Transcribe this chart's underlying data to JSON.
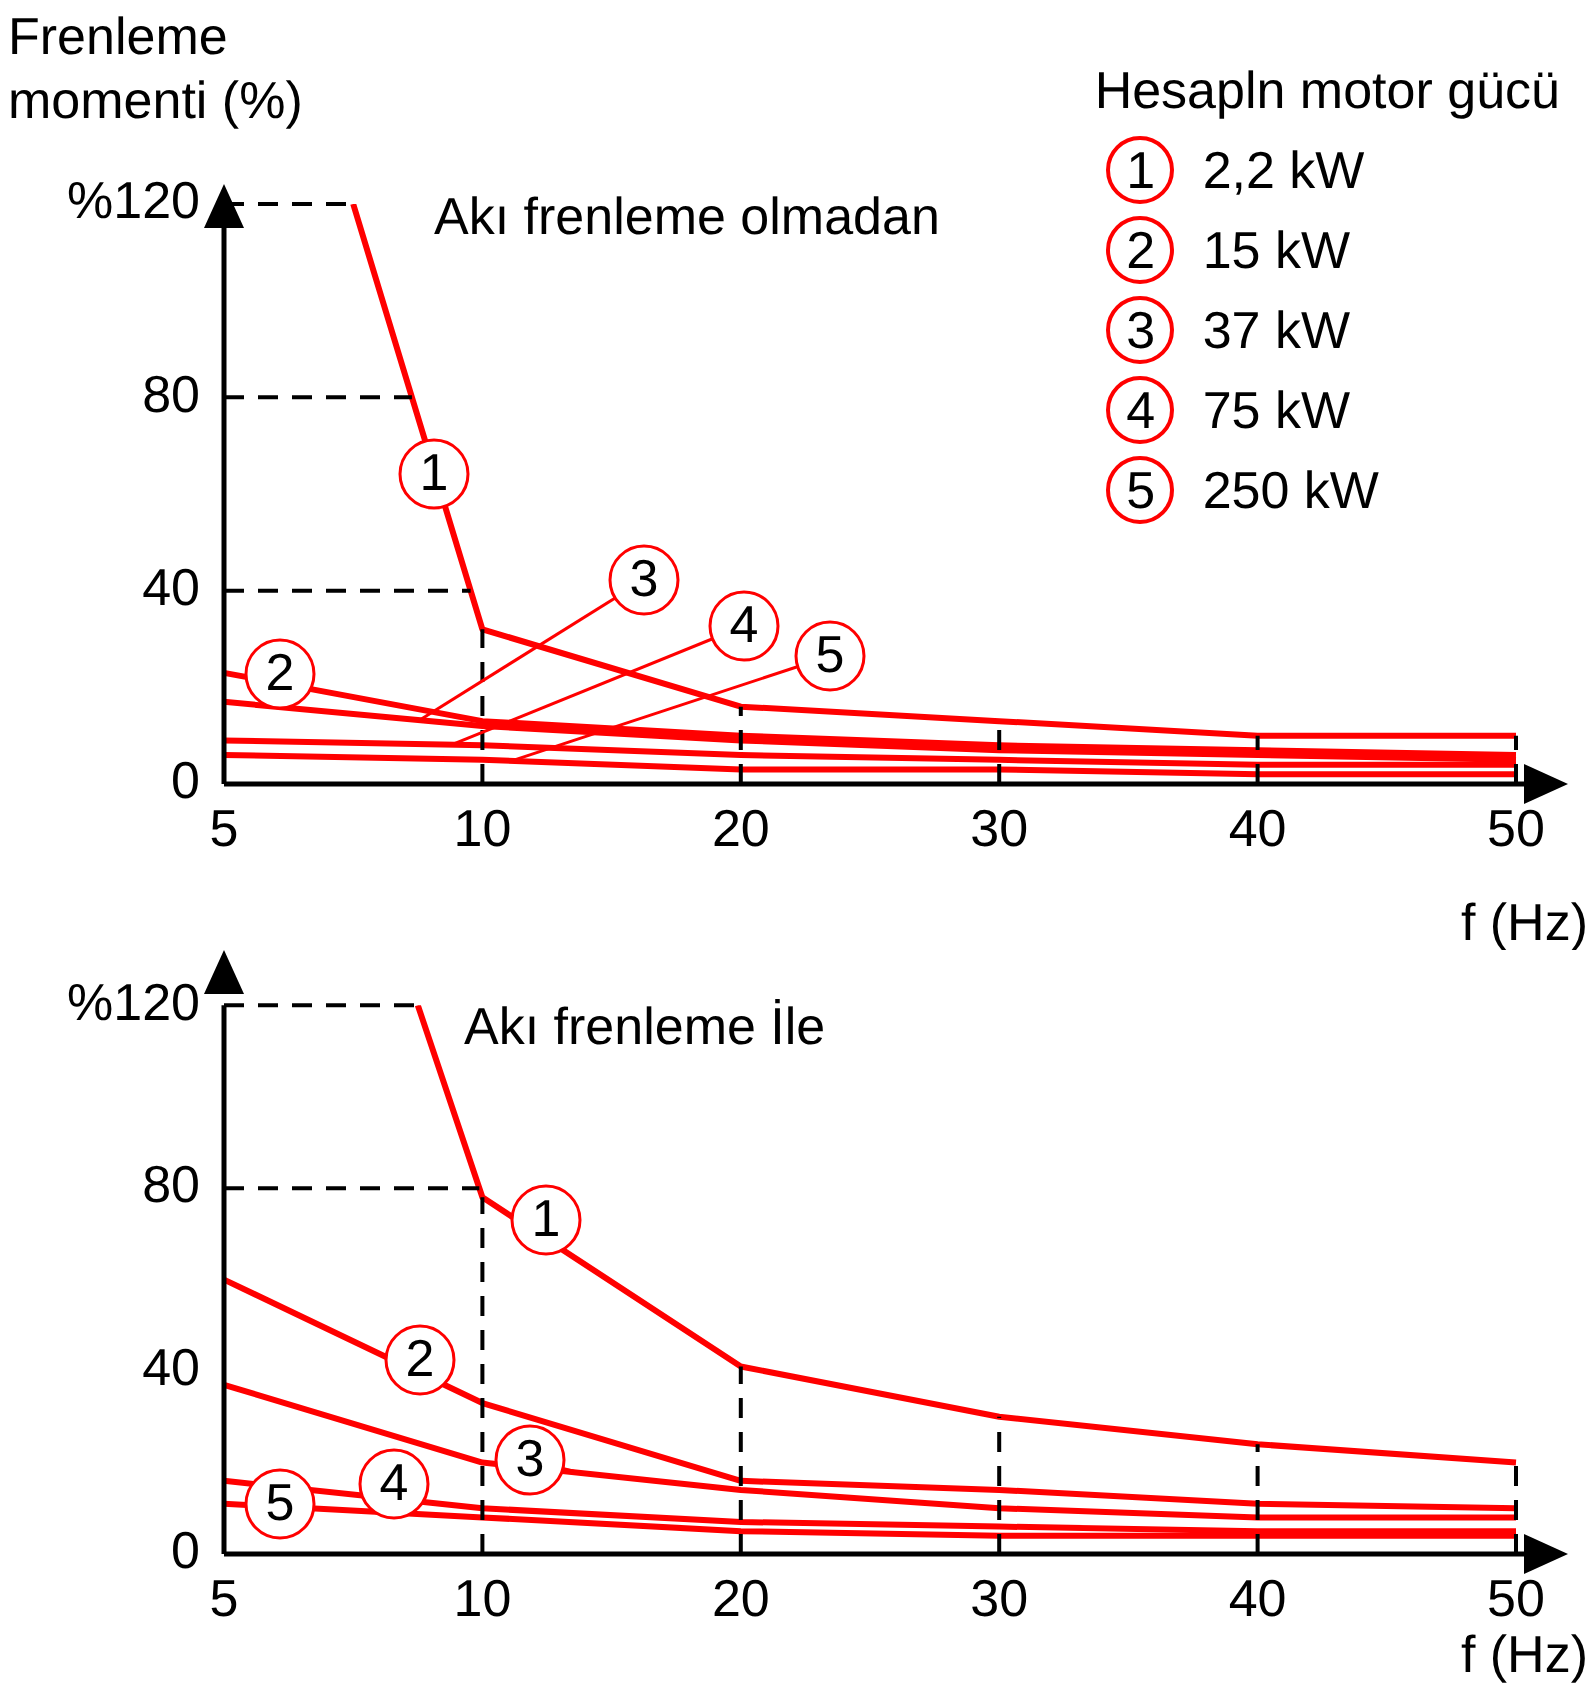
{
  "chart_data": [
    {
      "type": "line",
      "title": "Akı frenleme olmadan",
      "annotations": [
        "1",
        "2",
        {
          "text": "3",
          "y": 13
        },
        {
          "text": "4",
          "y": 8
        },
        {
          "text": "5",
          "y": 5
        }
      ],
      "ylabel": "Frenleme momenti (%)",
      "xlabel": "f (Hz)",
      "legend_title": "Hesapln motor gücü",
      "legend": "top right",
      "categories": [
        "5",
        null,
        null,
        null,
        "10",
        null,
        null,
        null,
        "20",
        null,
        null,
        null,
        "30",
        null,
        null,
        null,
        "40",
        null,
        null,
        null,
        "50"
      ],
      "ylim": [
        0,
        120
      ],
      "yticks": [
        0,
        40,
        80,
        {
          "value": 120,
          "label": "%120"
        }
      ],
      "grid": false,
      "marker": "none",
      "line_style": "solid",
      "ref_lines": [
        {
          "axis": "y",
          "value": 120,
          "line_style": "dashed",
          "color": "#000000"
        },
        {
          "axis": "y",
          "value": 80,
          "line_style": "dashed",
          "color": "#000000"
        },
        {
          "axis": "y",
          "value": 40,
          "line_style": "dashed",
          "color": "#000000"
        },
        {
          "axis": "x",
          "value": "10",
          "line_style": "dashed",
          "color": "#000000"
        },
        {
          "axis": "x",
          "value": "20",
          "line_style": "dashed",
          "color": "#000000"
        },
        {
          "axis": "x",
          "value": "30",
          "line_style": "dashed",
          "color": "#000000"
        },
        {
          "axis": "x",
          "value": "40",
          "line_style": "dashed",
          "color": "#000000"
        },
        {
          "axis": "x",
          "value": "50",
          "line_style": "dashed",
          "color": "#000000"
        }
      ],
      "series": [
        {
          "name": "2,2 kW",
          "color": "#ff0000",
          "values": [
            null,
            null,
            120,
            null,
            32,
            null,
            null,
            null,
            16,
            null,
            null,
            null,
            13,
            null,
            null,
            null,
            10,
            null,
            null,
            null,
            10
          ]
        },
        {
          "name": "15 kW",
          "color": "#ff0000",
          "values": [
            23,
            null,
            null,
            null,
            13,
            null,
            null,
            null,
            10,
            null,
            null,
            null,
            8,
            null,
            null,
            null,
            7,
            null,
            null,
            null,
            6
          ]
        },
        {
          "name": "37 kW",
          "color": "#ff0000",
          "values": [
            17,
            null,
            null,
            null,
            12,
            null,
            null,
            null,
            9,
            null,
            null,
            null,
            7,
            null,
            null,
            null,
            6,
            null,
            null,
            null,
            5
          ]
        },
        {
          "name": "75 kW",
          "color": "#ff0000",
          "values": [
            9,
            null,
            null,
            null,
            8,
            null,
            null,
            null,
            6,
            null,
            null,
            null,
            5,
            null,
            null,
            null,
            4,
            null,
            null,
            null,
            4
          ]
        },
        {
          "name": "250 kW",
          "color": "#ff0000",
          "values": [
            6,
            null,
            null,
            null,
            5,
            null,
            null,
            null,
            3,
            null,
            null,
            null,
            3,
            null,
            null,
            null,
            2,
            null,
            null,
            null,
            2
          ]
        }
      ]
    },
    {
      "type": "line",
      "title": "Akı frenleme İle",
      "annotations": [
        "1",
        "2",
        "3",
        "4",
        "5"
      ],
      "xlabel": "f (Hz)",
      "categories": [
        "5",
        null,
        null,
        null,
        "10",
        null,
        null,
        null,
        "20",
        null,
        null,
        null,
        "30",
        null,
        null,
        null,
        "40",
        null,
        null,
        null,
        "50"
      ],
      "ylim": [
        0,
        120
      ],
      "yticks": [
        0,
        40,
        80,
        {
          "value": 120,
          "label": "%120"
        }
      ],
      "grid": false,
      "marker": "none",
      "line_style": "solid",
      "ref_lines": [
        {
          "axis": "y",
          "value": 120,
          "line_style": "dashed",
          "color": "#000000"
        },
        {
          "axis": "y",
          "value": 80,
          "line_style": "dashed",
          "color": "#000000"
        },
        {
          "axis": "x",
          "value": "10",
          "line_style": "dashed",
          "color": "#000000"
        },
        {
          "axis": "x",
          "value": "20",
          "line_style": "dashed",
          "color": "#000000"
        },
        {
          "axis": "x",
          "value": "30",
          "line_style": "dashed",
          "color": "#000000"
        },
        {
          "axis": "x",
          "value": "40",
          "line_style": "dashed",
          "color": "#000000"
        },
        {
          "axis": "x",
          "value": "50",
          "line_style": "dashed",
          "color": "#000000"
        }
      ],
      "series": [
        {
          "color": "#ff0000",
          "values": [
            null,
            null,
            null,
            120,
            78,
            null,
            null,
            null,
            41,
            null,
            null,
            null,
            30,
            null,
            null,
            null,
            24,
            null,
            null,
            null,
            20
          ]
        },
        {
          "color": "#ff0000",
          "values": [
            60,
            null,
            null,
            null,
            33,
            null,
            null,
            null,
            16,
            null,
            null,
            null,
            14,
            null,
            null,
            null,
            11,
            null,
            null,
            null,
            10
          ]
        },
        {
          "color": "#ff0000",
          "values": [
            37,
            null,
            null,
            null,
            20,
            null,
            null,
            null,
            14,
            null,
            null,
            null,
            10,
            null,
            null,
            null,
            8,
            null,
            null,
            null,
            8
          ]
        },
        {
          "color": "#ff0000",
          "values": [
            16,
            null,
            null,
            null,
            10,
            null,
            null,
            null,
            7,
            null,
            null,
            null,
            6,
            null,
            null,
            null,
            5,
            null,
            null,
            null,
            5
          ]
        },
        {
          "color": "#ff0000",
          "values": [
            11,
            null,
            null,
            null,
            8,
            null,
            null,
            null,
            5,
            null,
            null,
            null,
            4,
            null,
            null,
            null,
            4,
            null,
            null,
            null,
            4
          ]
        }
      ]
    }
  ]
}
